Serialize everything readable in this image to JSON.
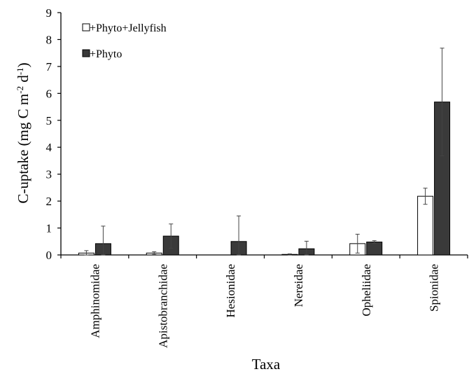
{
  "chart_data": {
    "type": "bar",
    "xlabel": "Taxa",
    "ylabel": "C-uptake (mg C m",
    "ylabel_sup1": "-2",
    "ylabel_mid": " d",
    "ylabel_sup2": "-1",
    "ylabel_end": ")",
    "ylim": [
      0,
      9
    ],
    "yticks": [
      "0",
      "1",
      "2",
      "3",
      "4",
      "5",
      "6",
      "7",
      "8",
      "9"
    ],
    "grid": false,
    "legend_position": "top-left",
    "categories": [
      "Amphinomidae",
      "Apistobranchidae",
      "Hesionidae",
      "Nereidae",
      "Opheliidae",
      "Spionidae"
    ],
    "series": [
      {
        "name": "+Phyto+Jellyfish",
        "color": "#ffffff",
        "values": [
          0.07,
          0.07,
          0,
          0.02,
          0.42,
          2.18
        ],
        "errors": [
          0.09,
          0.05,
          0,
          0.02,
          0.35,
          0.3
        ]
      },
      {
        "name": "+Phyto",
        "color": "#3a3a3a",
        "values": [
          0.42,
          0.7,
          0.5,
          0.23,
          0.48,
          5.68
        ],
        "errors": [
          0.65,
          0.45,
          0.95,
          0.28,
          0.05,
          2.0
        ]
      }
    ]
  }
}
